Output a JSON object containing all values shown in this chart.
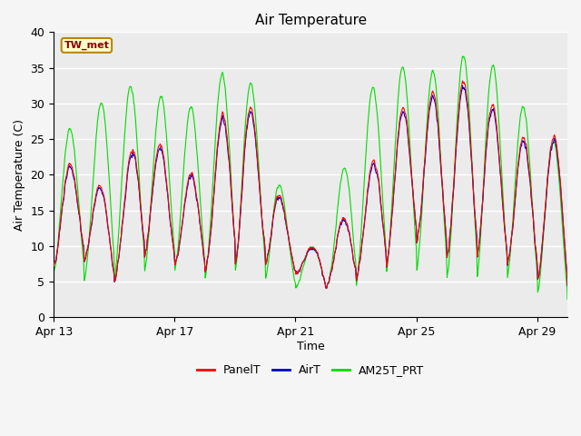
{
  "title": "Air Temperature",
  "xlabel": "Time",
  "ylabel": "Air Temperature (C)",
  "ylim": [
    0,
    40
  ],
  "xlim_days": [
    0,
    17
  ],
  "x_tick_positions": [
    0,
    4,
    8,
    12,
    16
  ],
  "x_tick_labels": [
    "Apr 13",
    "Apr 17",
    "Apr 21",
    "Apr 25",
    "Apr 29"
  ],
  "annotation_text": "TW_met",
  "annotation_color": "#8B0000",
  "annotation_bg": "#FFFFCC",
  "annotation_border": "#B8860B",
  "plot_bg": "#EBEBEB",
  "fig_bg": "#F5F5F5",
  "grid_color": "#FFFFFF",
  "color_panel": "#FF0000",
  "color_air": "#0000CC",
  "color_am25": "#00DD00",
  "legend_labels": [
    "PanelT",
    "AirT",
    "AM25T_PRT"
  ],
  "line_width": 0.8,
  "yticks": [
    0,
    5,
    10,
    15,
    20,
    25,
    30,
    35,
    40
  ]
}
